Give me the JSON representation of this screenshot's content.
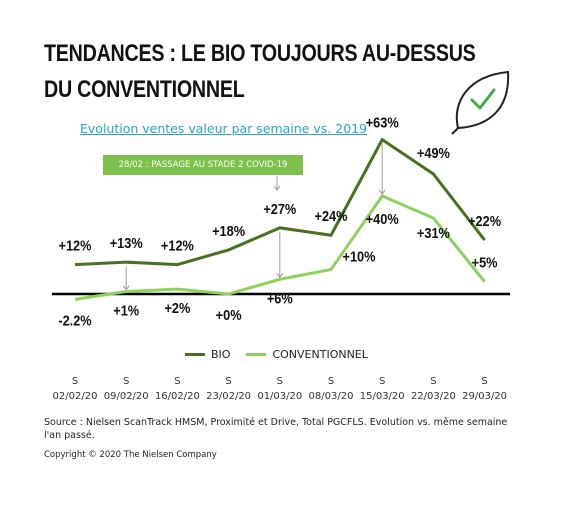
{
  "title_line1": "TENDANCES : LE BIO TOUJOURS AU-DESSUS",
  "title_line2": "DU CONVENTIONNEL",
  "subtitle": "Evolution ventes valeur par semaine vs. 2019",
  "covid_note": "28/02 : PASSAGE AU STADE 2 COVID-19",
  "source": "Source : Nielsen ScanTrack HMSM, Proximité et Drive, Total PGCFLS. Evolution vs. même semaine l'an passé.",
  "copyright": "Copyright © 2020 The Nielsen Company",
  "colors": {
    "bio": "#4a6f21",
    "conventionnel": "#8dd25b",
    "accent": "#7cc14a",
    "link": "#22a7d3"
  },
  "icons": {
    "leaf": "leaf-check-icon"
  },
  "chart_data": {
    "type": "line",
    "x": [
      "02/02/20",
      "09/02/20",
      "16/02/20",
      "23/02/20",
      "01/03/20",
      "08/03/20",
      "15/03/20",
      "22/03/20",
      "29/03/20"
    ],
    "x_prefix": "S",
    "series": [
      {
        "name": "BIO",
        "values": [
          12,
          13,
          12,
          18,
          27,
          24,
          63,
          49,
          22
        ],
        "labels": [
          "+12%",
          "+13%",
          "+12%",
          "+18%",
          "+27%",
          "+24%",
          "+63%",
          "+49%",
          "+22%"
        ]
      },
      {
        "name": "CONVENTIONNEL",
        "values": [
          -2.2,
          1,
          2,
          0,
          6,
          10,
          40,
          31,
          5
        ],
        "labels": [
          "-2.2%",
          "+1%",
          "+2%",
          "+0%",
          "+6%",
          "+10%",
          "+40%",
          "+31%",
          "+5%"
        ]
      }
    ],
    "legend_position": "bottom",
    "grid": false
  }
}
